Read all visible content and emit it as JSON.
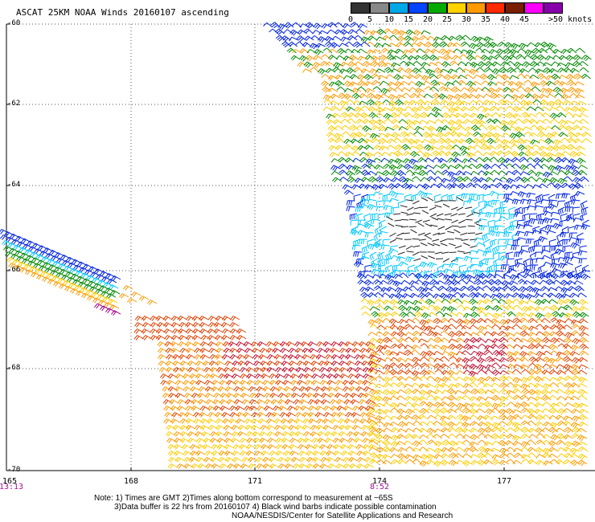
{
  "title": "ASCAT 25KM NOAA Winds 20160107 ascending",
  "legend": {
    "labels": [
      "0",
      "5",
      "10",
      "15",
      "20",
      "25",
      "30",
      "35",
      "40",
      "45",
      ">50 knots"
    ],
    "colors": [
      "#333333",
      "#888888",
      "#00a8e8",
      "#0044ff",
      "#00aa00",
      "#ffd200",
      "#ff9a00",
      "#ff2a00",
      "#7a1e00",
      "#ff00ff",
      "#8800aa"
    ]
  },
  "y_ticks": [
    "-60",
    "-62",
    "-64",
    "-66",
    "-68",
    "-70"
  ],
  "x_ticks": [
    "165",
    "168",
    "171",
    "174",
    "177"
  ],
  "times": [
    "13:13",
    "8:52"
  ],
  "notes": {
    "line1": "Note: 1) Times are GMT 2)Times along bottom correspond to measurement at ~65S",
    "line2": "3)Data buffer is 22 hrs from 20160107 4) Black wind barbs indicate possible contamination",
    "line3": "NOAA/NESDIS/Center for Satellite Applications and Research"
  },
  "barb_colors": {
    "lt5": "#222222",
    "c5_10": "#00c8ff",
    "c10_15": "#0022dd",
    "c15_20": "#008800",
    "c20_25": "#ffcc00",
    "c25_30": "#ff9900",
    "c30_35": "#e04000",
    "c35_40": "#c01030",
    "c40_45": "#a00090"
  }
}
